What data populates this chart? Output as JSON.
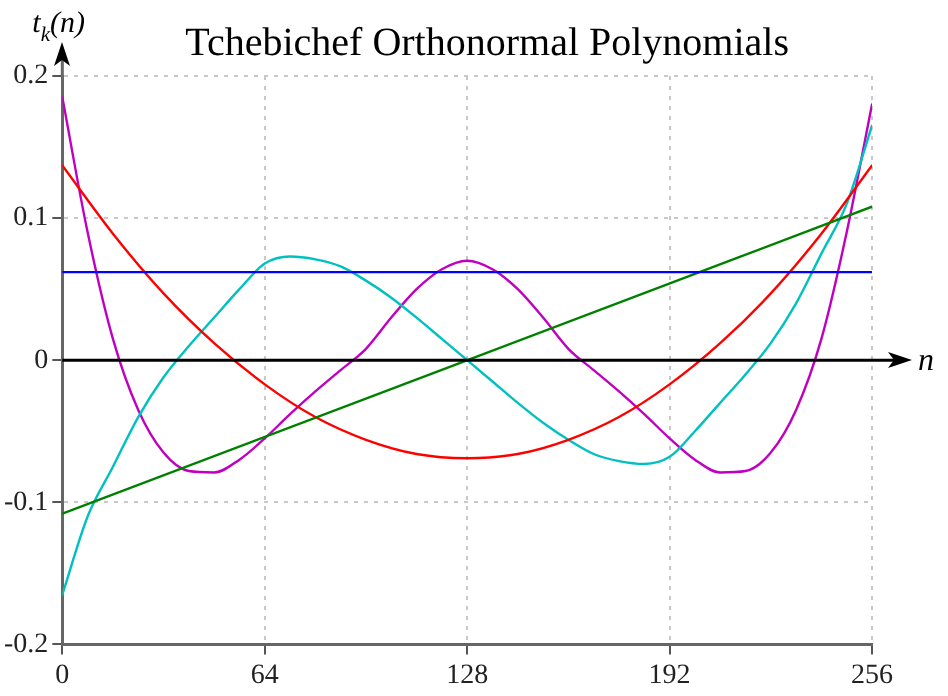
{
  "chart_data": {
    "type": "line",
    "title": "Tchebichef Orthonormal Polynomials",
    "xlabel": "n",
    "ylabel": "t$_{k}$(n)",
    "xlim": [
      0,
      256
    ],
    "xticks": [
      0,
      64,
      128,
      192,
      256
    ],
    "ylim": [
      -0.2,
      0.2
    ],
    "yticks": [
      -0.2,
      -0.1,
      0,
      0.1,
      0.2
    ],
    "grid": true,
    "marker": "none",
    "line_style": "solid",
    "series": [
      {
        "color": "#0000ff",
        "x": [
          0,
          256
        ],
        "values": [
          0.062,
          0.062
        ]
      },
      {
        "color": "#008000",
        "x": [
          0,
          256
        ],
        "values": [
          -0.108,
          0.108
        ]
      },
      {
        "color": "#ff0000",
        "x": [
          0,
          16,
          32,
          48,
          64,
          80,
          96,
          112,
          128,
          144,
          160,
          176,
          192,
          208,
          224,
          240,
          256
        ],
        "values": [
          0.137,
          0.089,
          0.047,
          0.012,
          -0.017,
          -0.04,
          -0.056,
          -0.066,
          -0.069,
          -0.066,
          -0.056,
          -0.04,
          -0.017,
          0.012,
          0.047,
          0.089,
          0.137
        ]
      },
      {
        "color": "#00c0c0",
        "x": [
          0,
          8,
          16,
          24,
          32,
          40,
          48,
          56,
          64,
          72,
          80,
          88,
          96,
          104,
          112,
          120,
          128,
          136,
          144,
          152,
          160,
          168,
          176,
          184,
          192,
          200,
          208,
          216,
          224,
          232,
          240,
          248,
          256
        ],
        "values": [
          -0.165,
          -0.11,
          -0.075,
          -0.04,
          -0.012,
          0.01,
          0.03,
          0.05,
          0.068,
          0.073,
          0.071,
          0.066,
          0.056,
          0.044,
          0.03,
          0.015,
          0,
          -0.015,
          -0.03,
          -0.044,
          -0.056,
          -0.066,
          -0.071,
          -0.073,
          -0.068,
          -0.05,
          -0.03,
          -0.01,
          0.012,
          0.04,
          0.075,
          0.11,
          0.165
        ]
      },
      {
        "color": "#c000c0",
        "x": [
          0,
          8,
          16,
          24,
          32,
          40,
          48,
          56,
          64,
          72,
          80,
          88,
          96,
          104,
          112,
          120,
          128,
          136,
          144,
          152,
          160,
          168,
          176,
          184,
          192,
          200,
          208,
          216,
          224,
          232,
          240,
          248,
          256
        ],
        "values": [
          0.185,
          0.09,
          0.015,
          -0.035,
          -0.065,
          -0.078,
          -0.079,
          -0.07,
          -0.055,
          -0.038,
          -0.022,
          -0.007,
          0.008,
          0.03,
          0.05,
          0.064,
          0.07,
          0.064,
          0.05,
          0.03,
          0.008,
          -0.007,
          -0.022,
          -0.038,
          -0.055,
          -0.07,
          -0.079,
          -0.078,
          -0.065,
          -0.035,
          0.015,
          0.09,
          0.18
        ]
      }
    ]
  }
}
